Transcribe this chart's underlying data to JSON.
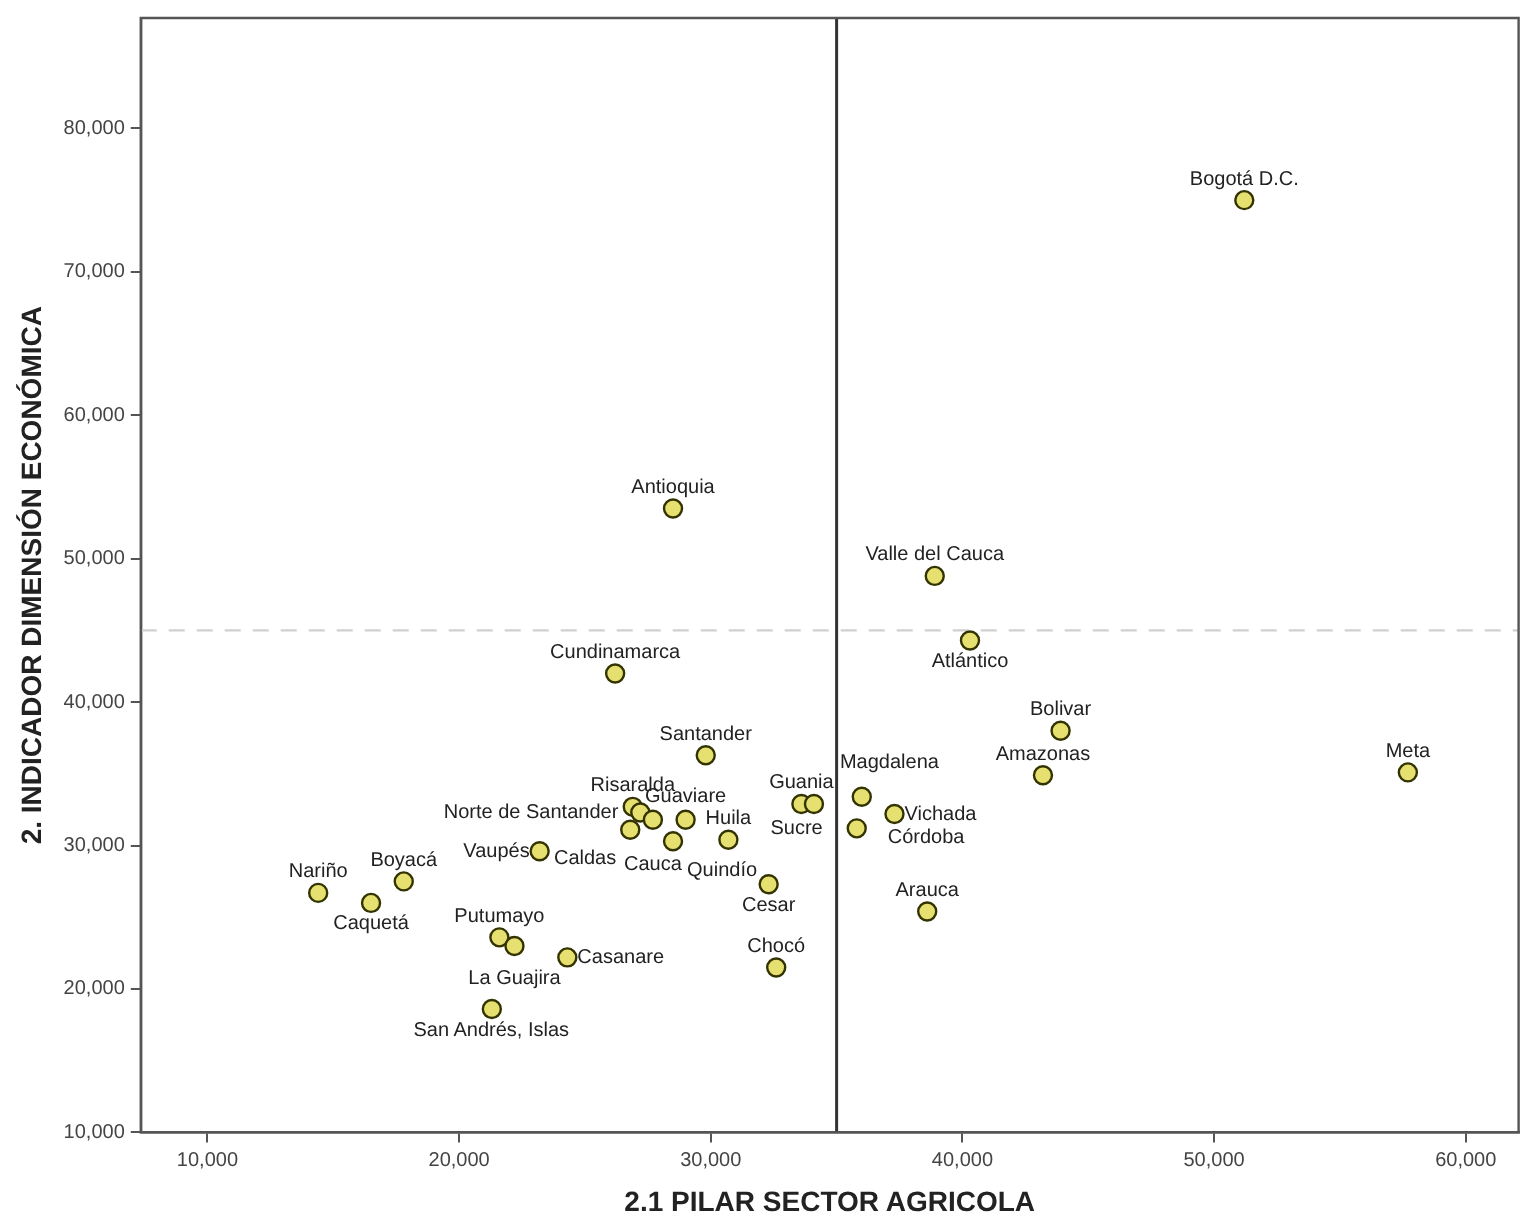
{
  "chart_data": {
    "type": "scatter",
    "xlabel": "2.1 PILAR SECTOR AGRICOLA",
    "ylabel": "2. INDICADOR DIMENSIÓN ECONÓMICA",
    "xlim": [
      7350,
      62100
    ],
    "xticks": [
      {
        "value": 10000,
        "label": "10,000"
      },
      {
        "value": 20000,
        "label": "20,000"
      },
      {
        "value": 30000,
        "label": "30,000"
      },
      {
        "value": 40000,
        "label": "40,000"
      },
      {
        "value": 50000,
        "label": "50,000"
      },
      {
        "value": 60000,
        "label": "60,000"
      }
    ],
    "ylim": [
      10000,
      87700
    ],
    "yticks": [
      {
        "value": 10000,
        "label": "10,000"
      },
      {
        "value": 20000,
        "label": "20,000"
      },
      {
        "value": 30000,
        "label": "30,000"
      },
      {
        "value": 40000,
        "label": "40,000"
      },
      {
        "value": 50000,
        "label": "50,000"
      },
      {
        "value": 60000,
        "label": "60,000"
      },
      {
        "value": 70000,
        "label": "70,000"
      },
      {
        "value": 80000,
        "label": "80,000"
      }
    ],
    "grid": false,
    "legend": false,
    "marker": "circle",
    "series": [
      {
        "color": "#e6e070",
        "x": [
          51200,
          28500,
          38900,
          40300,
          26200,
          43900,
          57700,
          43200,
          29800,
          33600,
          34100,
          36000,
          37300,
          35800,
          38600,
          32600,
          26900,
          27200,
          27700,
          26800,
          29000,
          28500,
          30700,
          32300,
          23200,
          17800,
          14400,
          16500,
          21600,
          22200,
          24300,
          21300
        ],
        "values": [
          75000,
          53500,
          48800,
          44300,
          42000,
          38000,
          35100,
          34900,
          36300,
          32900,
          32900,
          33400,
          32200,
          31200,
          25400,
          21500,
          32700,
          32300,
          31800,
          31100,
          31800,
          30300,
          30400,
          27300,
          29600,
          27500,
          26700,
          26000,
          23600,
          23000,
          22200,
          18600
        ]
      }
    ],
    "annotations": [
      {
        "text": "Bogotá D.C.",
        "x": 51200,
        "y": 75000
      },
      {
        "text": "Antioquia",
        "x": 28500,
        "y": 53500
      },
      {
        "text": "Valle del Cauca",
        "x": 38900,
        "y": 48800
      },
      {
        "text": "Atlántico",
        "x": 40300,
        "y": 44300
      },
      {
        "text": "Cundinamarca",
        "x": 26200,
        "y": 42000
      },
      {
        "text": "Bolivar",
        "x": 43900,
        "y": 38000
      },
      {
        "text": "Meta",
        "x": 57700,
        "y": 35100
      },
      {
        "text": "Amazonas",
        "x": 43200,
        "y": 34900
      },
      {
        "text": "Santander",
        "x": 29800,
        "y": 36300
      },
      {
        "text": "Guania",
        "x": 33600,
        "y": 32900
      },
      {
        "text": "Magdalena",
        "x": 34100,
        "y": 32900
      },
      {
        "text": "Córdoba",
        "x": 36000,
        "y": 33400
      },
      {
        "text": "Vichada",
        "x": 37300,
        "y": 32200
      },
      {
        "text": "Sucre",
        "x": 35800,
        "y": 31200
      },
      {
        "text": "Arauca",
        "x": 38600,
        "y": 25400
      },
      {
        "text": "Chocó",
        "x": 32600,
        "y": 21500
      },
      {
        "text": "Risaralda",
        "x": 26900,
        "y": 32700
      },
      {
        "text": "Norte de Santander",
        "x": 27200,
        "y": 32300
      },
      {
        "text": "Cauca",
        "x": 27700,
        "y": 31800
      },
      {
        "text": "Caldas",
        "x": 26800,
        "y": 31100
      },
      {
        "text": "Guaviare",
        "x": 29000,
        "y": 31800
      },
      {
        "text": "Quindío",
        "x": 28500,
        "y": 30300
      },
      {
        "text": "Huila",
        "x": 30700,
        "y": 30400
      },
      {
        "text": "Cesar",
        "x": 32300,
        "y": 27300
      },
      {
        "text": "Vaupés",
        "x": 23200,
        "y": 29600
      },
      {
        "text": "Boyacá",
        "x": 17800,
        "y": 27500
      },
      {
        "text": "Nariño",
        "x": 14400,
        "y": 26700
      },
      {
        "text": "Caquetá",
        "x": 16500,
        "y": 26000
      },
      {
        "text": "Putumayo",
        "x": 21600,
        "y": 23600
      },
      {
        "text": "La Guajira",
        "x": 22200,
        "y": 23000
      },
      {
        "text": "Casanare",
        "x": 24300,
        "y": 22200
      },
      {
        "text": "San Andrés, Islas",
        "x": 21300,
        "y": 18600
      }
    ],
    "ref_lines": [
      {
        "axis": "x",
        "value": 35000,
        "color": "#333333",
        "line_style": "solid"
      },
      {
        "axis": "y",
        "value": 45000,
        "color": "#d0d0d0",
        "line_style": "dashed"
      }
    ]
  }
}
